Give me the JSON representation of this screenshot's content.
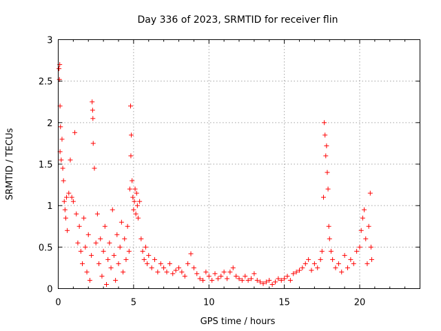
{
  "chart_data": {
    "type": "scatter",
    "title": "Day 336 of 2023, SRMTID for receiver flin",
    "xlabel": "GPS time / hours",
    "ylabel": "SRMTID / TECUs",
    "xlim": [
      0,
      24
    ],
    "ylim": [
      0,
      3
    ],
    "xticks": [
      0,
      5,
      10,
      15,
      20
    ],
    "yticks": [
      0,
      0.5,
      1,
      1.5,
      2,
      2.5,
      3
    ],
    "xtick_labels": [
      "0",
      "5",
      "10",
      "15",
      "20"
    ],
    "ytick_labels": [
      "0",
      "0.5",
      "1",
      "1.5",
      "2",
      "2.5",
      "3"
    ],
    "grid": true,
    "marker": "+",
    "color": "#ff0000",
    "series": [
      {
        "name": "SRMTID",
        "points": [
          [
            0.05,
            2.65
          ],
          [
            0.08,
            2.52
          ],
          [
            0.1,
            2.7
          ],
          [
            0.12,
            2.2
          ],
          [
            0.15,
            1.95
          ],
          [
            0.12,
            1.65
          ],
          [
            0.2,
            1.55
          ],
          [
            0.25,
            1.8
          ],
          [
            0.3,
            1.45
          ],
          [
            0.35,
            1.3
          ],
          [
            0.4,
            1.05
          ],
          [
            0.45,
            0.95
          ],
          [
            0.5,
            0.85
          ],
          [
            0.55,
            1.1
          ],
          [
            0.6,
            0.7
          ],
          [
            0.7,
            1.15
          ],
          [
            0.8,
            1.55
          ],
          [
            0.9,
            1.1
          ],
          [
            1.0,
            1.05
          ],
          [
            1.1,
            1.88
          ],
          [
            1.2,
            0.9
          ],
          [
            1.3,
            0.55
          ],
          [
            1.4,
            0.75
          ],
          [
            1.5,
            0.45
          ],
          [
            1.6,
            0.3
          ],
          [
            1.7,
            0.85
          ],
          [
            1.8,
            0.5
          ],
          [
            1.9,
            0.2
          ],
          [
            2.0,
            0.65
          ],
          [
            2.1,
            0.1
          ],
          [
            2.2,
            0.4
          ],
          [
            2.25,
            2.25
          ],
          [
            2.28,
            2.15
          ],
          [
            2.3,
            2.05
          ],
          [
            2.32,
            1.75
          ],
          [
            2.4,
            1.45
          ],
          [
            2.5,
            0.55
          ],
          [
            2.6,
            0.9
          ],
          [
            2.7,
            0.3
          ],
          [
            2.8,
            0.6
          ],
          [
            2.9,
            0.15
          ],
          [
            3.0,
            0.45
          ],
          [
            3.1,
            0.75
          ],
          [
            3.2,
            0.05
          ],
          [
            3.3,
            0.35
          ],
          [
            3.4,
            0.55
          ],
          [
            3.5,
            0.25
          ],
          [
            3.6,
            0.95
          ],
          [
            3.7,
            0.4
          ],
          [
            3.8,
            0.1
          ],
          [
            3.9,
            0.65
          ],
          [
            4.0,
            0.3
          ],
          [
            4.1,
            0.5
          ],
          [
            4.2,
            0.8
          ],
          [
            4.3,
            0.2
          ],
          [
            4.4,
            0.6
          ],
          [
            4.5,
            0.35
          ],
          [
            4.6,
            0.75
          ],
          [
            4.7,
            0.45
          ],
          [
            4.75,
            1.2
          ],
          [
            4.8,
            2.2
          ],
          [
            4.82,
            1.6
          ],
          [
            4.85,
            1.85
          ],
          [
            4.9,
            1.3
          ],
          [
            4.95,
            1.1
          ],
          [
            5.0,
            0.95
          ],
          [
            5.05,
            1.05
          ],
          [
            5.1,
            1.2
          ],
          [
            5.15,
            0.9
          ],
          [
            5.2,
            1.15
          ],
          [
            5.25,
            1.0
          ],
          [
            5.3,
            0.85
          ],
          [
            5.4,
            1.05
          ],
          [
            5.5,
            0.6
          ],
          [
            5.6,
            0.45
          ],
          [
            5.7,
            0.35
          ],
          [
            5.8,
            0.5
          ],
          [
            5.9,
            0.3
          ],
          [
            6.0,
            0.4
          ],
          [
            6.2,
            0.25
          ],
          [
            6.4,
            0.35
          ],
          [
            6.6,
            0.2
          ],
          [
            6.8,
            0.3
          ],
          [
            7.0,
            0.25
          ],
          [
            7.2,
            0.2
          ],
          [
            7.4,
            0.3
          ],
          [
            7.6,
            0.18
          ],
          [
            7.8,
            0.22
          ],
          [
            8.0,
            0.25
          ],
          [
            8.2,
            0.2
          ],
          [
            8.4,
            0.15
          ],
          [
            8.6,
            0.3
          ],
          [
            8.8,
            0.42
          ],
          [
            9.0,
            0.25
          ],
          [
            9.2,
            0.18
          ],
          [
            9.4,
            0.12
          ],
          [
            9.6,
            0.1
          ],
          [
            9.8,
            0.2
          ],
          [
            10.0,
            0.15
          ],
          [
            10.2,
            0.1
          ],
          [
            10.4,
            0.18
          ],
          [
            10.6,
            0.12
          ],
          [
            10.8,
            0.15
          ],
          [
            11.0,
            0.2
          ],
          [
            11.2,
            0.12
          ],
          [
            11.4,
            0.2
          ],
          [
            11.6,
            0.25
          ],
          [
            11.8,
            0.15
          ],
          [
            12.0,
            0.12
          ],
          [
            12.2,
            0.1
          ],
          [
            12.4,
            0.15
          ],
          [
            12.6,
            0.1
          ],
          [
            12.8,
            0.12
          ],
          [
            13.0,
            0.18
          ],
          [
            13.2,
            0.1
          ],
          [
            13.4,
            0.08
          ],
          [
            13.6,
            0.06
          ],
          [
            13.8,
            0.08
          ],
          [
            14.0,
            0.1
          ],
          [
            14.2,
            0.05
          ],
          [
            14.4,
            0.08
          ],
          [
            14.6,
            0.12
          ],
          [
            14.8,
            0.1
          ],
          [
            15.0,
            0.12
          ],
          [
            15.2,
            0.15
          ],
          [
            15.4,
            0.1
          ],
          [
            15.6,
            0.18
          ],
          [
            15.8,
            0.2
          ],
          [
            16.0,
            0.22
          ],
          [
            16.2,
            0.25
          ],
          [
            16.4,
            0.3
          ],
          [
            16.6,
            0.35
          ],
          [
            16.8,
            0.22
          ],
          [
            17.0,
            0.3
          ],
          [
            17.2,
            0.25
          ],
          [
            17.4,
            0.35
          ],
          [
            17.5,
            0.45
          ],
          [
            17.6,
            1.1
          ],
          [
            17.65,
            2.0
          ],
          [
            17.7,
            1.85
          ],
          [
            17.75,
            1.6
          ],
          [
            17.8,
            1.72
          ],
          [
            17.85,
            1.4
          ],
          [
            17.9,
            1.2
          ],
          [
            17.95,
            0.75
          ],
          [
            18.0,
            0.6
          ],
          [
            18.1,
            0.45
          ],
          [
            18.2,
            0.35
          ],
          [
            18.4,
            0.25
          ],
          [
            18.6,
            0.3
          ],
          [
            18.8,
            0.2
          ],
          [
            19.0,
            0.4
          ],
          [
            19.2,
            0.25
          ],
          [
            19.4,
            0.35
          ],
          [
            19.6,
            0.3
          ],
          [
            19.8,
            0.45
          ],
          [
            20.0,
            0.5
          ],
          [
            20.1,
            0.7
          ],
          [
            20.2,
            0.85
          ],
          [
            20.3,
            0.95
          ],
          [
            20.4,
            0.6
          ],
          [
            20.5,
            0.3
          ],
          [
            20.6,
            0.75
          ],
          [
            20.7,
            1.15
          ],
          [
            20.75,
            0.5
          ],
          [
            20.8,
            0.35
          ]
        ]
      }
    ]
  }
}
